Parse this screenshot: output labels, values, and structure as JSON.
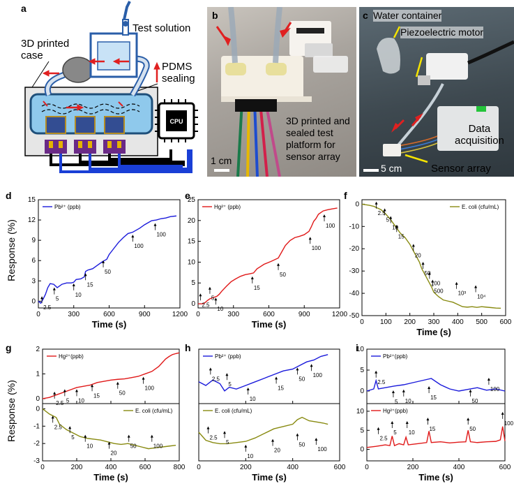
{
  "panel_letters": {
    "a": "a",
    "b": "b",
    "c": "c",
    "d": "d",
    "e": "e",
    "f": "f",
    "g": "g",
    "h": "h",
    "i": "i"
  },
  "schematic": {
    "test_solution": "Test solution",
    "printed_case": "3D printed\ncase",
    "pdms_sealing": "PDMS\nsealing",
    "cpu": "CPU",
    "colors": {
      "case": "#e6e6e6",
      "chamber": "#8fc9ec",
      "arrow": "#e02020",
      "wire_black": "#000000",
      "wire_blue": "#1a3fd6"
    }
  },
  "photo_b": {
    "caption": "3D printed and\nsealed test\nplatform for\nsensor array",
    "scale": "1 cm"
  },
  "photo_c": {
    "water_container": "Water container",
    "piezo_motor": "Piezoelectric motor",
    "data_acquisition": "Data\nacquisition",
    "sensor_array": "Sensor array",
    "scale": "5 cm"
  },
  "ylabel_shared_top": "Response (%)",
  "ylabel_shared_bottom": "Response (%)",
  "chart_data": [
    {
      "id": "d",
      "type": "line",
      "xlabel": "Time (s)",
      "ylabel": "Response (%)",
      "xlim": [
        0,
        1200
      ],
      "ylim": [
        -1,
        15
      ],
      "xticks": [
        0,
        300,
        600,
        900,
        1200
      ],
      "yticks": [
        0,
        3,
        6,
        9,
        12,
        15
      ],
      "series": [
        {
          "name": "Pb²⁺ (ppb)",
          "color": "#1a1adb",
          "x": [
            0,
            20,
            40,
            60,
            80,
            100,
            130,
            160,
            200,
            240,
            280,
            300,
            320,
            360,
            390,
            400,
            420,
            460,
            500,
            540,
            560,
            580,
            600,
            640,
            680,
            720,
            760,
            800,
            820,
            860,
            900,
            940,
            960,
            1000,
            1040,
            1080,
            1120,
            1170
          ],
          "y": [
            0,
            -0.3,
            0.3,
            1.0,
            2.0,
            2.6,
            2.5,
            2.0,
            2.5,
            2.7,
            2.7,
            2.8,
            3.2,
            3.3,
            3.6,
            4.4,
            4.6,
            4.8,
            5.3,
            5.8,
            6.0,
            6.2,
            6.9,
            7.8,
            8.7,
            9.4,
            10.0,
            10.2,
            10.4,
            10.8,
            11.3,
            11.7,
            11.9,
            12.0,
            12.2,
            12.3,
            12.5,
            12.6
          ]
        }
      ],
      "annotations": [
        {
          "label": "2.5",
          "x": 30,
          "y": -0.3
        },
        {
          "label": "5",
          "x": 135,
          "y": 1.0
        },
        {
          "label": "10",
          "x": 300,
          "y": 1.6
        },
        {
          "label": "15",
          "x": 400,
          "y": 3.1
        },
        {
          "label": "50",
          "x": 550,
          "y": 5.0
        },
        {
          "label": "100",
          "x": 800,
          "y": 8.8
        },
        {
          "label": "100",
          "x": 990,
          "y": 10.5
        }
      ],
      "legend_position": "top-left"
    },
    {
      "id": "e",
      "type": "line",
      "xlabel": "Time (s)",
      "ylabel": "",
      "xlim": [
        0,
        1200
      ],
      "ylim": [
        -1,
        25
      ],
      "xticks": [
        0,
        300,
        600,
        900,
        1200
      ],
      "yticks": [
        0,
        5,
        10,
        15,
        20,
        25
      ],
      "series": [
        {
          "name": "Hg²⁺ (ppb)",
          "color": "#e01818",
          "x": [
            0,
            40,
            60,
            80,
            100,
            120,
            140,
            160,
            180,
            200,
            240,
            280,
            320,
            360,
            400,
            440,
            470,
            500,
            560,
            620,
            680,
            700,
            740,
            780,
            820,
            860,
            900,
            940,
            960,
            980,
            1000,
            1020,
            1060,
            1100,
            1140,
            1180
          ],
          "y": [
            0,
            0,
            0.3,
            0.8,
            1.2,
            1.4,
            1.6,
            1.8,
            2.3,
            3.0,
            4.2,
            5.3,
            6.0,
            6.6,
            7.0,
            7.2,
            7.4,
            8.4,
            9.5,
            10.2,
            11.0,
            12.0,
            14.0,
            15.2,
            15.9,
            16.2,
            16.6,
            17.4,
            18.5,
            19.8,
            20.5,
            21.5,
            22.3,
            22.6,
            22.8,
            23.0
          ]
        }
      ],
      "annotations": [
        {
          "label": "2.5",
          "x": 20,
          "y": 0.8
        },
        {
          "label": "5",
          "x": 100,
          "y": 2.4
        },
        {
          "label": "10",
          "x": 150,
          "y": -0.2
        },
        {
          "label": "15",
          "x": 460,
          "y": 4.9
        },
        {
          "label": "50",
          "x": 680,
          "y": 8.1
        },
        {
          "label": "100",
          "x": 950,
          "y": 14.4
        },
        {
          "label": "100",
          "x": 1070,
          "y": 19.8
        }
      ],
      "legend_position": "top-left"
    },
    {
      "id": "f",
      "type": "line",
      "xlabel": "Time (s)",
      "ylabel": "",
      "xlim": [
        0,
        600
      ],
      "ylim": [
        -50,
        2
      ],
      "xticks": [
        0,
        100,
        200,
        300,
        400,
        500,
        600
      ],
      "yticks": [
        -50,
        -40,
        -30,
        -20,
        -10,
        0
      ],
      "series": [
        {
          "name": "E. coli (cfu/mL)",
          "color": "#888a10",
          "x": [
            0,
            30,
            50,
            70,
            80,
            100,
            120,
            140,
            160,
            180,
            200,
            220,
            240,
            250,
            260,
            275,
            290,
            300,
            320,
            340,
            360,
            380,
            400,
            420,
            440,
            460,
            480,
            500,
            520,
            540,
            560,
            580
          ],
          "y": [
            0,
            -0.5,
            -1.0,
            -2.0,
            -2.5,
            -4.5,
            -7.0,
            -10.0,
            -13.0,
            -15.0,
            -18.0,
            -22.0,
            -26.0,
            -29.0,
            -31.0,
            -34.0,
            -37.0,
            -39.5,
            -41.5,
            -43.0,
            -43.5,
            -44.0,
            -45.0,
            -46.0,
            -46.2,
            -46.0,
            -46.3,
            -46.0,
            -46.2,
            -46.4,
            -46.6,
            -46.7
          ]
        }
      ],
      "annotations": [
        {
          "label": "2.5",
          "x": 60,
          "y": -2.0
        },
        {
          "label": "5",
          "x": 95,
          "y": -5.0
        },
        {
          "label": "10",
          "x": 120,
          "y": -8.5
        },
        {
          "label": "15",
          "x": 145,
          "y": -12.5
        },
        {
          "label": "20",
          "x": 215,
          "y": -21.0
        },
        {
          "label": "50",
          "x": 255,
          "y": -29.0
        },
        {
          "label": "100",
          "x": 282,
          "y": -33.5
        },
        {
          "label": "500",
          "x": 295,
          "y": -37.0
        },
        {
          "label": "10³",
          "x": 395,
          "y": -38.0
        },
        {
          "label": "10⁴",
          "x": 475,
          "y": -39.5
        }
      ],
      "legend_position": "top-right"
    },
    {
      "id": "g_top",
      "type": "line",
      "xlabel": "",
      "ylabel": "",
      "xlim": [
        0,
        800
      ],
      "ylim": [
        -0.2,
        2
      ],
      "xticks": [
        0,
        200,
        400,
        600,
        800
      ],
      "yticks": [
        0,
        1,
        2
      ],
      "series": [
        {
          "name": "Hg²⁺(ppb)",
          "color": "#e01818",
          "x": [
            0,
            40,
            80,
            120,
            160,
            200,
            240,
            280,
            320,
            360,
            400,
            440,
            480,
            520,
            560,
            600,
            640,
            680,
            700,
            720,
            740,
            760,
            780,
            800
          ],
          "y": [
            0,
            0.05,
            0.15,
            0.25,
            0.35,
            0.45,
            0.5,
            0.55,
            0.65,
            0.7,
            0.75,
            0.78,
            0.8,
            0.85,
            0.9,
            1.0,
            1.1,
            1.3,
            1.45,
            1.6,
            1.7,
            1.78,
            1.82,
            1.85
          ]
        }
      ],
      "annotations": [
        {
          "label": "2.5",
          "x": 70,
          "y": 0.0
        },
        {
          "label": "5",
          "x": 130,
          "y": 0.1
        },
        {
          "label": "10",
          "x": 200,
          "y": 0.1
        },
        {
          "label": "15",
          "x": 290,
          "y": 0.3
        },
        {
          "label": "50",
          "x": 440,
          "y": 0.4
        },
        {
          "label": "100",
          "x": 590,
          "y": 0.6
        }
      ],
      "legend_position": "top-left"
    },
    {
      "id": "g_bottom",
      "type": "line",
      "xlabel": "Time (s)",
      "ylabel": "",
      "xlim": [
        0,
        800
      ],
      "ylim": [
        -3,
        0.3
      ],
      "xticks": [
        0,
        200,
        400,
        600,
        800
      ],
      "yticks": [
        -3,
        -2,
        -1,
        0
      ],
      "series": [
        {
          "name": "E. coli (cfu/mL)",
          "color": "#888a10",
          "x": [
            0,
            40,
            80,
            100,
            140,
            180,
            220,
            260,
            300,
            340,
            380,
            420,
            460,
            500,
            540,
            580,
            620,
            660,
            700,
            740,
            780
          ],
          "y": [
            0,
            -0.3,
            -0.5,
            -0.9,
            -1.2,
            -1.4,
            -1.6,
            -1.7,
            -1.75,
            -1.8,
            -1.9,
            -2.0,
            -2.05,
            -2.0,
            -2.1,
            -2.2,
            -2.3,
            -2.25,
            -2.2,
            -2.15,
            -2.1
          ]
        }
      ],
      "annotations": [
        {
          "label": "2.5",
          "x": 60,
          "y": -0.8
        },
        {
          "label": "5",
          "x": 160,
          "y": -1.4
        },
        {
          "label": "10",
          "x": 250,
          "y": -1.9
        },
        {
          "label": "20",
          "x": 390,
          "y": -2.3
        },
        {
          "label": "50",
          "x": 505,
          "y": -1.9
        },
        {
          "label": "100",
          "x": 640,
          "y": -1.9
        }
      ],
      "legend_position": "top-right"
    },
    {
      "id": "h_top",
      "type": "line",
      "xlabel": "",
      "ylabel": "",
      "xlim": [
        0,
        600
      ],
      "ylim": [
        -0.8,
        2.2
      ],
      "xticks": [
        0,
        200,
        400,
        600
      ],
      "yticks": [],
      "series": [
        {
          "name": "Pb²⁺ (ppb)",
          "color": "#1a1adb",
          "x": [
            0,
            30,
            60,
            90,
            110,
            130,
            160,
            200,
            240,
            280,
            320,
            360,
            400,
            430,
            460,
            490,
            520,
            550
          ],
          "y": [
            0.4,
            0.2,
            0.5,
            0.3,
            -0.1,
            0.1,
            0.0,
            0.2,
            0.4,
            0.6,
            0.8,
            1.0,
            1.1,
            1.3,
            1.5,
            1.6,
            1.8,
            1.9
          ]
        }
      ],
      "annotations": [
        {
          "label": "2.5",
          "x": 50,
          "y": 0.8
        },
        {
          "label": "5",
          "x": 120,
          "y": 0.5
        },
        {
          "label": "10",
          "x": 210,
          "y": -0.3
        },
        {
          "label": "15",
          "x": 330,
          "y": 0.3
        },
        {
          "label": "50",
          "x": 420,
          "y": 0.8
        },
        {
          "label": "100",
          "x": 480,
          "y": 1.0
        }
      ],
      "legend_position": "top-left"
    },
    {
      "id": "h_bottom",
      "type": "line",
      "xlabel": "Time (s)",
      "ylabel": "",
      "xlim": [
        0,
        600
      ],
      "ylim": [
        -2,
        3
      ],
      "xticks": [
        0,
        200,
        400,
        600
      ],
      "yticks": [],
      "series": [
        {
          "name": "E. coli (cfu/mL)",
          "color": "#888a10",
          "x": [
            0,
            30,
            60,
            90,
            120,
            160,
            200,
            240,
            280,
            320,
            360,
            400,
            420,
            440,
            470,
            500,
            530,
            550
          ],
          "y": [
            0.5,
            -0.2,
            -0.4,
            -0.5,
            -0.5,
            -0.4,
            -0.3,
            0.0,
            0.4,
            0.8,
            1.0,
            1.2,
            1.6,
            1.8,
            1.5,
            1.4,
            1.3,
            1.2
          ]
        }
      ],
      "annotations": [
        {
          "label": "2.5",
          "x": 40,
          "y": 0.4
        },
        {
          "label": "5",
          "x": 110,
          "y": 0.0
        },
        {
          "label": "10",
          "x": 200,
          "y": -1.2
        },
        {
          "label": "20",
          "x": 315,
          "y": -0.7
        },
        {
          "label": "50",
          "x": 420,
          "y": -0.2
        },
        {
          "label": "100",
          "x": 500,
          "y": -0.6
        }
      ],
      "legend_position": "top-left"
    },
    {
      "id": "i_top",
      "type": "line",
      "xlabel": "",
      "ylabel": "",
      "xlim": [
        0,
        600
      ],
      "ylim": [
        -3,
        10
      ],
      "xticks": [
        0,
        200,
        400,
        600
      ],
      "yticks": [
        0,
        5,
        10
      ],
      "series": [
        {
          "name": "Pb²⁺(ppb)",
          "color": "#1a1adb",
          "x": [
            0,
            30,
            40,
            50,
            80,
            120,
            160,
            200,
            240,
            280,
            320,
            360,
            400,
            440,
            480,
            520,
            560,
            600
          ],
          "y": [
            0,
            0.5,
            2.5,
            0.5,
            0.8,
            1.2,
            1.5,
            2.0,
            2.5,
            3.0,
            1.5,
            0.5,
            0.0,
            0.4,
            0.8,
            0.2,
            0.5,
            0.0
          ]
        }
      ],
      "annotations": [
        {
          "label": "2.5",
          "x": 40,
          "y": 3.2
        },
        {
          "label": "5",
          "x": 115,
          "y": -1.5
        },
        {
          "label": "10",
          "x": 160,
          "y": -1.3
        },
        {
          "label": "15",
          "x": 270,
          "y": -0.5
        },
        {
          "label": "50",
          "x": 450,
          "y": -1.3
        },
        {
          "label": "100",
          "x": 530,
          "y": 1.5
        }
      ],
      "legend_position": "top-left"
    },
    {
      "id": "i_bottom",
      "type": "line",
      "xlabel": "Time (s)",
      "ylabel": "",
      "xlim": [
        0,
        600
      ],
      "ylim": [
        -3,
        12
      ],
      "xticks": [
        0,
        200,
        400,
        600
      ],
      "yticks": [
        0,
        5,
        10
      ],
      "series": [
        {
          "name": "Hg²⁺(ppb)",
          "color": "#e01818",
          "x": [
            0,
            40,
            60,
            80,
            100,
            110,
            120,
            140,
            160,
            170,
            180,
            220,
            260,
            270,
            280,
            320,
            360,
            400,
            430,
            440,
            450,
            480,
            520,
            560,
            580,
            590,
            600
          ],
          "y": [
            0.5,
            0.8,
            1.0,
            1.2,
            1.0,
            3.5,
            1.0,
            1.5,
            1.2,
            3.2,
            1.2,
            1.5,
            1.8,
            4.8,
            1.8,
            2.0,
            1.7,
            1.9,
            2.0,
            5.0,
            2.0,
            1.8,
            2.0,
            2.1,
            2.5,
            6.0,
            2.2
          ]
        }
      ],
      "annotations": [
        {
          "label": "2.5",
          "x": 50,
          "y": 4.0
        },
        {
          "label": "5",
          "x": 110,
          "y": 5.6
        },
        {
          "label": "10",
          "x": 175,
          "y": 5.6
        },
        {
          "label": "15",
          "x": 265,
          "y": 6.5
        },
        {
          "label": "50",
          "x": 440,
          "y": 6.5
        },
        {
          "label": "100",
          "x": 590,
          "y": 8.0
        }
      ],
      "legend_position": "top-left"
    }
  ]
}
